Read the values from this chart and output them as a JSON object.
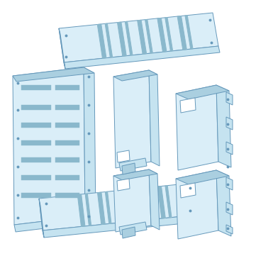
{
  "bg_color": "#ffffff",
  "face_light": "#daeef8",
  "face_mid": "#c5e3f0",
  "face_dark": "#aacfe0",
  "edge_color": "#6699bb",
  "stripe_color": "#8ab8cc",
  "figsize": [
    3.85,
    3.85
  ],
  "dpi": 100
}
